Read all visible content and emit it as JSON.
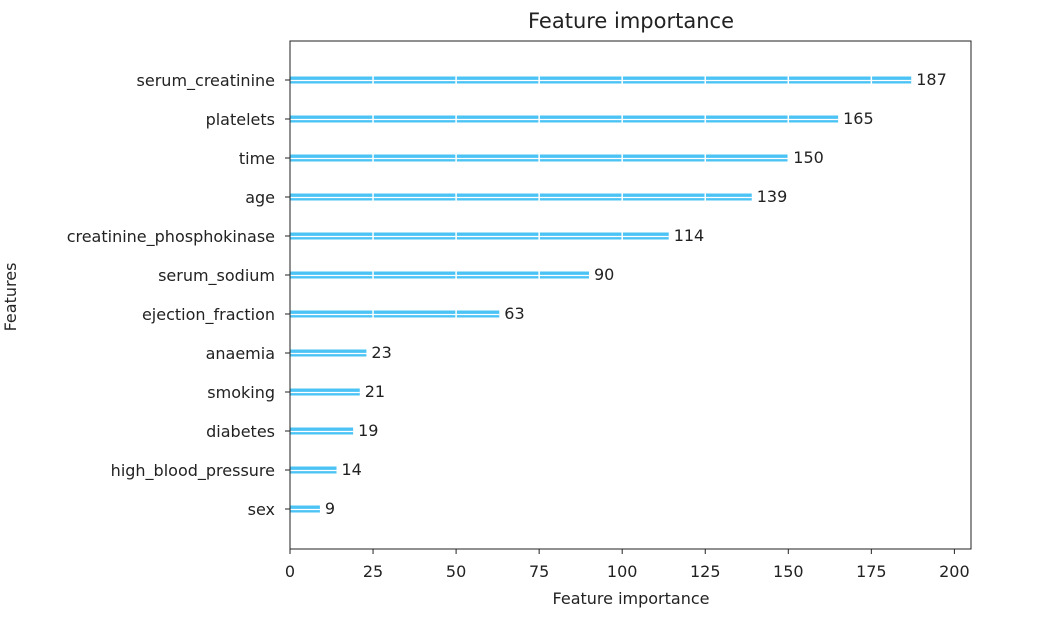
{
  "chart_data": {
    "type": "bar",
    "orientation": "horizontal",
    "title": "Feature importance",
    "xlabel": "Feature importance",
    "ylabel": "Features",
    "categories": [
      "serum_creatinine",
      "platelets",
      "time",
      "age",
      "creatinine_phosphokinase",
      "serum_sodium",
      "ejection_fraction",
      "anaemia",
      "smoking",
      "diabetes",
      "high_blood_pressure",
      "sex"
    ],
    "values": [
      187,
      165,
      150,
      139,
      114,
      90,
      63,
      23,
      21,
      19,
      14,
      9
    ],
    "xlim": [
      0,
      205
    ],
    "xticks": [
      0,
      25,
      50,
      75,
      100,
      125,
      150,
      175,
      200
    ],
    "grid": true,
    "bar_color": "#4cc3f5",
    "grid_color": "#ffffff"
  }
}
